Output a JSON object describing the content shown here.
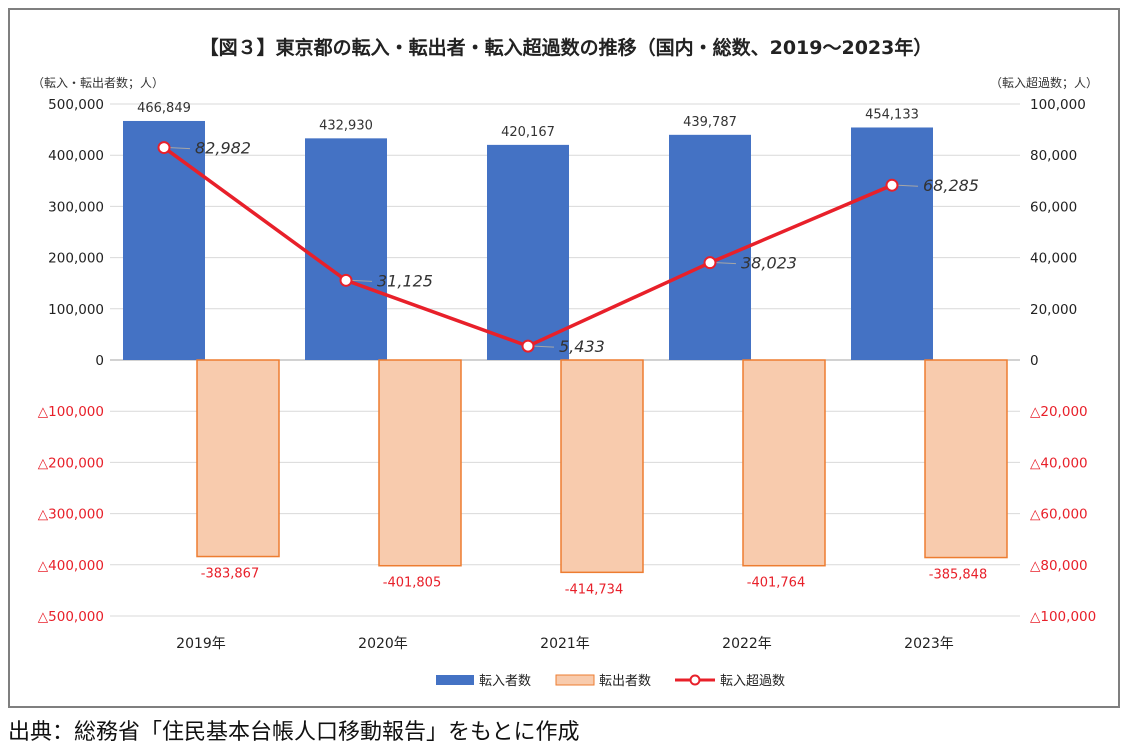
{
  "chart_data": {
    "type": "bar+line",
    "title": "【図３】東京都の転入・転出者・転入超過数の推移（国内・総数、2019～2023年）",
    "left_axis_label": "（転入・転出者数；人）",
    "right_axis_label": "（転入超過数；人）",
    "categories": [
      "2019年",
      "2020年",
      "2021年",
      "2022年",
      "2023年"
    ],
    "left_ylim": [
      -500000,
      500000
    ],
    "right_ylim": [
      -100000,
      100000
    ],
    "left_tick_values": [
      500000,
      400000,
      300000,
      200000,
      100000,
      0,
      -100000,
      -200000,
      -300000,
      -400000,
      -500000
    ],
    "left_tick_labels": [
      "500,000",
      "400,000",
      "300,000",
      "200,000",
      "100,000",
      "0",
      "△100,000",
      "△200,000",
      "△300,000",
      "△400,000",
      "△500,000"
    ],
    "right_tick_values": [
      100000,
      80000,
      60000,
      40000,
      20000,
      0,
      -20000,
      -40000,
      -60000,
      -80000,
      -100000
    ],
    "right_tick_labels": [
      "100,000",
      "80,000",
      "60,000",
      "40,000",
      "20,000",
      "0",
      "△20,000",
      "△40,000",
      "△60,000",
      "△80,000",
      "△100,000"
    ],
    "series": [
      {
        "name": "転入者数",
        "type": "bar",
        "axis": "left",
        "color": "#4472c4",
        "values": [
          466849,
          432930,
          420167,
          439787,
          454133
        ],
        "labels": [
          "466,849",
          "432,930",
          "420,167",
          "439,787",
          "454,133"
        ]
      },
      {
        "name": "転出者数",
        "type": "bar",
        "axis": "left",
        "color": "#f8cbad",
        "stroke": "#ed7d31",
        "values": [
          -383867,
          -401805,
          -414734,
          -401764,
          -385848
        ],
        "labels": [
          "-383,867",
          "-401,805",
          "-414,734",
          "-401,764",
          "-385,848"
        ]
      },
      {
        "name": "転入超過数",
        "type": "line",
        "axis": "right",
        "color": "#e8202a",
        "values": [
          82982,
          31125,
          5433,
          38023,
          68285
        ],
        "labels": [
          "82,982",
          "31,125",
          "5,433",
          "38,023",
          "68,285"
        ]
      }
    ],
    "legend_position": "bottom",
    "negative_label_color": "#e8202a"
  },
  "source_note": "出典：総務省「住民基本台帳人口移動報告」をもとに作成"
}
